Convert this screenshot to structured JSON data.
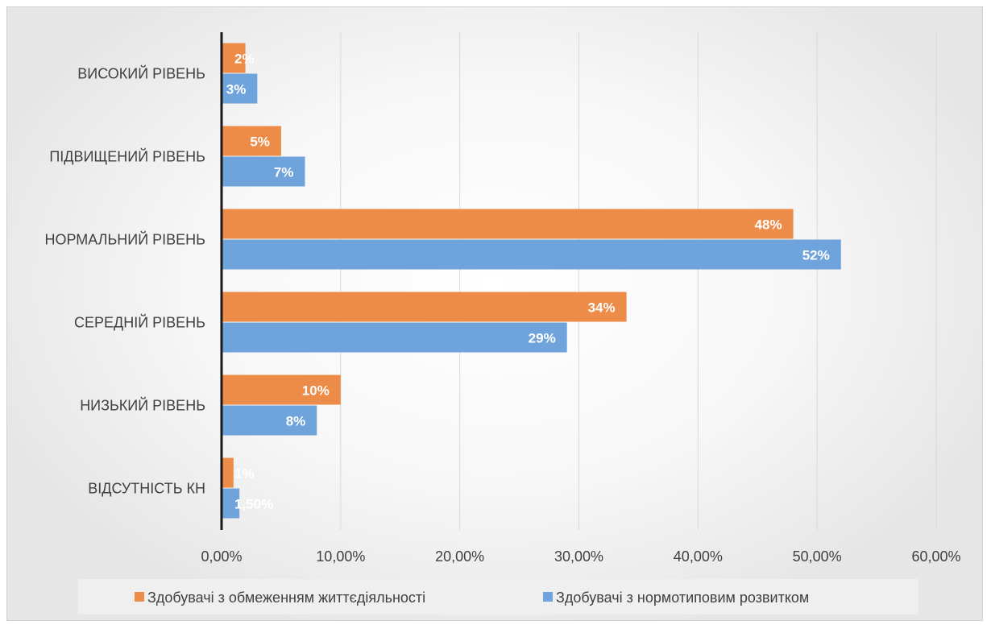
{
  "colors": {
    "series1": "#ED8B48",
    "series2": "#6FA3DB",
    "grid": "#d9d9d9",
    "axis": "#1a1a1a",
    "legend_bg": "#efefef"
  },
  "chart_data": {
    "type": "bar",
    "orientation": "horizontal",
    "categories": [
      "ВИСОКИЙ РІВЕНЬ",
      "ПІДВИЩЕНИЙ РІВЕНЬ",
      "НОРМАЛЬНИЙ РІВЕНЬ",
      "СЕРЕДНІЙ РІВЕНЬ",
      "НИЗЬКИЙ РІВЕНЬ",
      "ВІДСУТНІСТЬ КН"
    ],
    "series": [
      {
        "name": "Здобувачі з обмеженням життєдіяльності",
        "values": [
          2,
          5,
          48,
          34,
          10,
          1
        ],
        "labels": [
          "2%",
          "5%",
          "48%",
          "34%",
          "10%",
          "1%"
        ]
      },
      {
        "name": "Здобувачі з нормотиповим розвитком",
        "values": [
          3,
          7,
          52,
          29,
          8,
          1.5
        ],
        "labels": [
          "3%",
          "7%",
          "52%",
          "29%",
          "8%",
          "1,50%"
        ]
      }
    ],
    "xlim": [
      0,
      60
    ],
    "x_ticks": [
      0,
      10,
      20,
      30,
      40,
      50,
      60
    ],
    "x_tick_labels": [
      "0,00%",
      "10,00%",
      "20,00%",
      "30,00%",
      "40,00%",
      "50,00%",
      "60,00%"
    ],
    "grid": true,
    "legend_position": "bottom"
  }
}
